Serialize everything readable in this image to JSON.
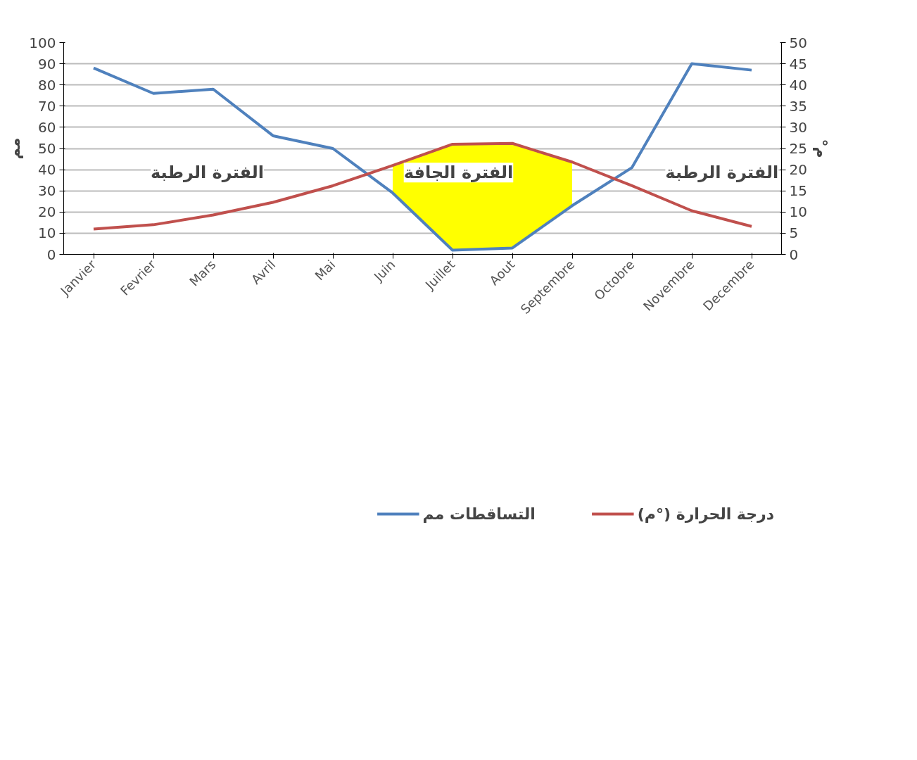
{
  "chart_data": {
    "type": "line",
    "ylabel": "مم",
    "y2label": "°م",
    "categories": [
      "Janvier",
      "Fevrier",
      "Mars",
      "Avril",
      "Mai",
      "Juin",
      "Juillet",
      "Aout",
      "Septembre",
      "Octobre",
      "Novembre",
      "Decembre"
    ],
    "series": [
      {
        "name": "التساقطات مم",
        "color": "#4f81bd",
        "values": [
          88,
          76,
          78,
          56,
          50,
          29,
          2,
          3,
          23,
          41,
          90,
          87
        ],
        "lower": [
          null,
          null,
          null,
          null,
          null,
          29,
          2,
          3,
          23,
          null,
          null,
          null
        ],
        "upper": [
          null,
          null,
          null,
          null,
          null,
          42,
          52,
          52,
          44,
          null,
          null,
          null
        ]
      },
      {
        "name": "درجة الحرارة (°م)",
        "color": "#c0504d",
        "axis": "y2",
        "values": [
          6,
          7,
          9.3,
          12.3,
          16.2,
          21,
          26,
          26.2,
          21.8,
          16.2,
          10.3,
          6.6
        ]
      }
    ],
    "ylim": [
      0,
      100
    ],
    "yticks": [
      0,
      10,
      20,
      30,
      40,
      50,
      60,
      70,
      80,
      90,
      100
    ],
    "y2lim": [
      0,
      50
    ],
    "y2ticks": [
      0,
      5,
      10,
      15,
      20,
      25,
      30,
      35,
      40,
      45,
      50
    ],
    "grid": "y",
    "legend": "bottom",
    "annotations": [
      "الفترة الرطبة",
      "الفترة الجافة",
      "الفترة الرطبة"
    ]
  }
}
